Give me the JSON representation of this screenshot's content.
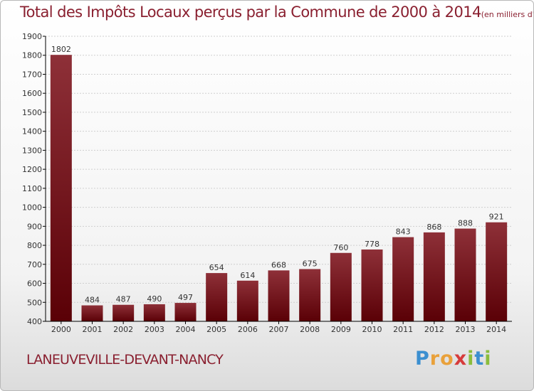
{
  "title": "Total des Impôts Locaux perçus par la Commune de 2000 à 2014",
  "subtitle": "(en milliers d'€)",
  "commune": "LANEUVEVILLE-DEVANT-NANCY",
  "logo_letters": [
    "P",
    "r",
    "o",
    "x",
    "i",
    "t",
    "i"
  ],
  "colors": {
    "bar_top": "#8e3038",
    "bar_bottom": "#5a0006",
    "title": "#8a2030",
    "axis": "#000000",
    "grid": "#cfcfcf"
  },
  "chart_data": {
    "type": "bar",
    "categories": [
      "2000",
      "2001",
      "2002",
      "2003",
      "2004",
      "2005",
      "2006",
      "2007",
      "2008",
      "2009",
      "2010",
      "2011",
      "2012",
      "2013",
      "2014"
    ],
    "values": [
      1802,
      484,
      487,
      490,
      497,
      654,
      614,
      668,
      675,
      760,
      778,
      843,
      868,
      888,
      921
    ],
    "ylim": [
      400,
      1900
    ],
    "yticks": [
      400,
      500,
      600,
      700,
      800,
      900,
      1000,
      1100,
      1200,
      1300,
      1400,
      1500,
      1600,
      1700,
      1800,
      1900
    ],
    "grid": true,
    "legend": "none"
  }
}
